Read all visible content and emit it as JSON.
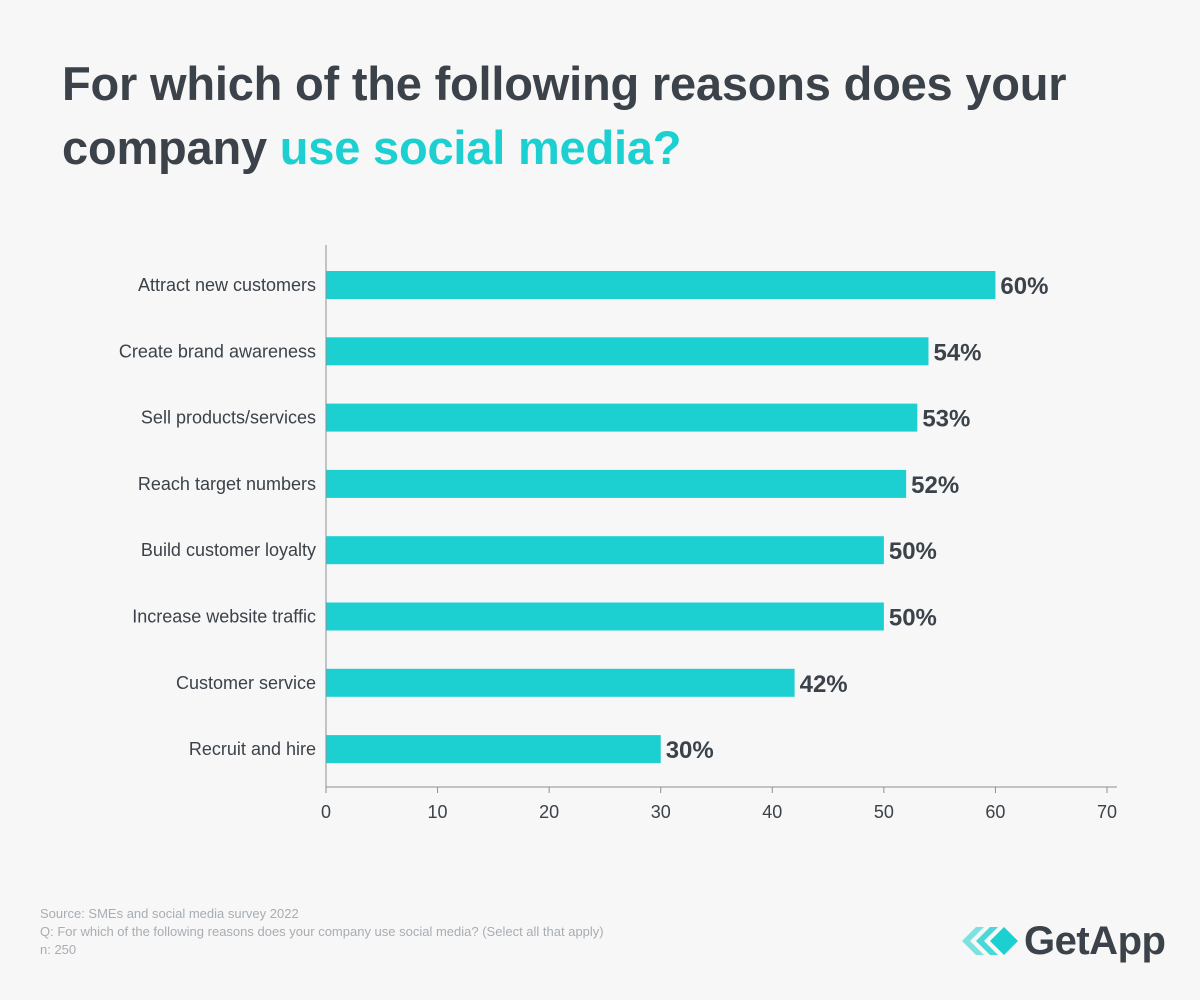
{
  "header": {
    "title_part1": "For which of the following reasons does your company ",
    "title_highlight": "use social media?"
  },
  "chart_data": {
    "type": "bar",
    "orientation": "horizontal",
    "categories": [
      "Attract new customers",
      "Create brand awareness",
      "Sell products/services",
      "Reach target numbers",
      "Build customer loyalty",
      "Increase website traffic",
      "Customer service",
      "Recruit and hire"
    ],
    "values": [
      60,
      54,
      53,
      52,
      50,
      50,
      42,
      30
    ],
    "value_labels": [
      "60%",
      "54%",
      "53%",
      "52%",
      "50%",
      "50%",
      "42%",
      "30%"
    ],
    "xlim": [
      0,
      70
    ],
    "xticks": [
      0,
      10,
      20,
      30,
      40,
      50,
      60,
      70
    ],
    "grid": false,
    "bar_color": "#1ccfd0"
  },
  "footer": {
    "source": "Source: SMEs and social media survey 2022",
    "question": "Q: For which of the following reasons does your company use social media? (Select all that apply)",
    "n": "n: 250"
  },
  "brand": {
    "name": "GetApp",
    "logo_icon": "getapp-chevrons-icon",
    "color": "#1ccfd0"
  }
}
